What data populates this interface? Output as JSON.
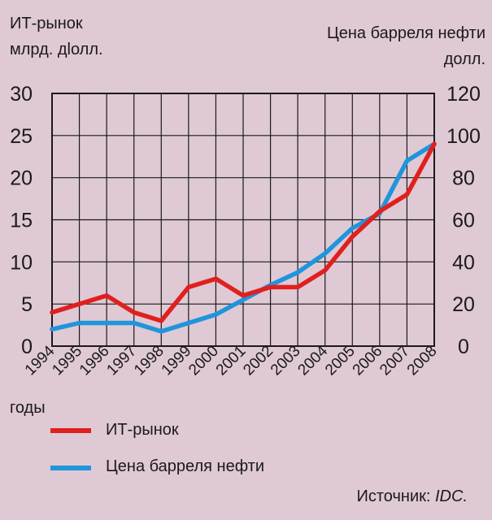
{
  "labels": {
    "left_title_line1": "ИТ-рынок",
    "left_title_line2": "млрд. дlолл.",
    "right_title_line1": "Цена барреля нефти",
    "right_title_line2": "долл.",
    "xlabel": "годы",
    "source_prefix": "Источник: ",
    "source_name": "IDC."
  },
  "colors": {
    "background": "#dfc9d4",
    "grid": "#1a1a1a",
    "it_market": "#e0201e",
    "oil_price": "#1f95dc"
  },
  "chart_data": {
    "type": "line",
    "x": [
      "1994",
      "1995",
      "1996",
      "1997",
      "1998",
      "1999",
      "2000",
      "2001",
      "2002",
      "2003",
      "2004",
      "2005",
      "2006",
      "2007",
      "2008"
    ],
    "series": [
      {
        "name": "ИТ-рынок",
        "axis": "left",
        "color": "#e0201e",
        "values": [
          4,
          5,
          6,
          4,
          3,
          7,
          8,
          6,
          7,
          7,
          9,
          13,
          16,
          18,
          24
        ]
      },
      {
        "name": "Цена барреля нефти",
        "axis": "right",
        "color": "#1f95dc",
        "values": [
          8,
          11,
          11,
          11,
          7,
          11,
          15,
          22,
          29,
          35,
          44,
          56,
          63,
          88,
          96
        ]
      }
    ],
    "y_left": {
      "min": 0,
      "max": 30,
      "ticks": [
        0,
        5,
        10,
        15,
        20,
        25,
        30
      ]
    },
    "y_right": {
      "min": 0,
      "max": 120,
      "ticks": [
        0,
        20,
        40,
        60,
        80,
        100,
        120
      ]
    },
    "grid": true,
    "legend": "bottom-left"
  }
}
